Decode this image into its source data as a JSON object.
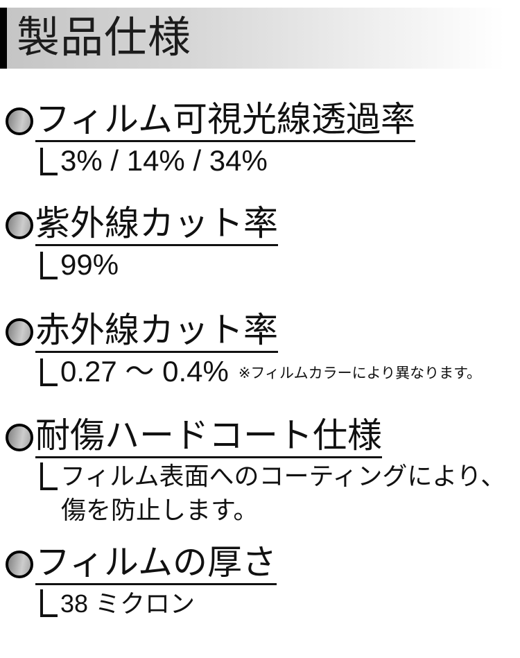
{
  "header": {
    "title": "製品仕様"
  },
  "sections": [
    {
      "title": "フィルム可視光線透過率",
      "value": "3% / 14% / 34%"
    },
    {
      "title": "紫外線カット率",
      "value": "99%"
    },
    {
      "title": "赤外線カット率",
      "value": "0.27 〜 0.4%",
      "note": "※フィルムカラーにより異なります。"
    },
    {
      "title": "耐傷ハードコート仕様",
      "value": "フィルム表面へのコーティングにより、",
      "value_line2": "傷を防止します。"
    },
    {
      "title": "フィルムの厚さ",
      "value": "38 ミクロン"
    }
  ],
  "icons": {
    "bullet": "sphere-bullet-icon",
    "elbow": "elbow-connector-icon"
  },
  "colors": {
    "header_bar": "#000000",
    "header_gradient_start": "#c5c5c5",
    "header_gradient_end": "#ffffff",
    "text": "#111111",
    "bullet_border": "#000000",
    "bullet_dark": "#878787",
    "bullet_light": "#cdcdcd",
    "underline": "#111111"
  }
}
